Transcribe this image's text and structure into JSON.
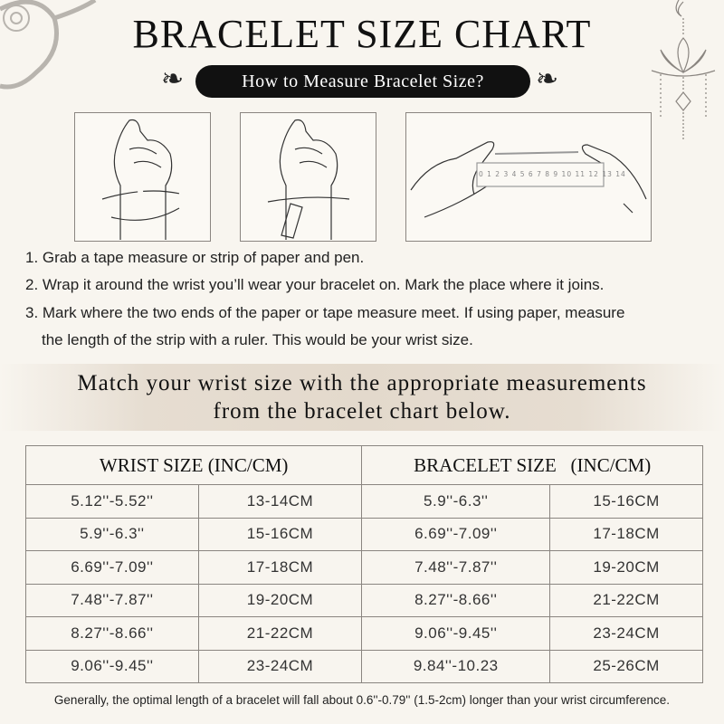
{
  "title": "BRACELET SIZE CHART",
  "subtitle": "How to Measure Bracelet Size?",
  "ruler_numbers": [
    "0",
    "1",
    "2",
    "3",
    "4",
    "5",
    "6",
    "7",
    "8",
    "9",
    "10",
    "11",
    "12",
    "13",
    "14"
  ],
  "steps": [
    "1. Grab a tape measure or strip of paper and pen.",
    "2. Wrap it around the wrist you’ll wear your bracelet on. Mark the place where it joins.",
    "3. Mark where the two ends of the paper or tape measure meet. If using paper, measure",
    "the length of the strip with a ruler. This would be your wrist size."
  ],
  "banner": {
    "line1": "Match your wrist size with the appropriate measurements",
    "line2": "from the bracelet chart below."
  },
  "table": {
    "headers": [
      "WRIST SIZE (INC/CM)",
      "BRACELET SIZE   (INC/CM)"
    ],
    "rows": [
      [
        "5.12''-5.52''",
        "13-14CM",
        "5.9''-6.3''",
        "15-16CM"
      ],
      [
        "5.9''-6.3''",
        "15-16CM",
        "6.69''-7.09''",
        "17-18CM"
      ],
      [
        "6.69''-7.09''",
        "17-18CM",
        "7.48''-7.87''",
        "19-20CM"
      ],
      [
        "7.48''-7.87''",
        "19-20CM",
        "8.27''-8.66''",
        "21-22CM"
      ],
      [
        "8.27''-8.66''",
        "21-22CM",
        "9.06''-9.45''",
        "23-24CM"
      ],
      [
        "9.06''-9.45''",
        "23-24CM",
        "9.84''-10.23",
        "25-26CM"
      ]
    ]
  },
  "note": "Generally, the optimal length of a bracelet will fall about 0.6''-0.79'' (1.5-2cm) longer than your wrist circumference."
}
